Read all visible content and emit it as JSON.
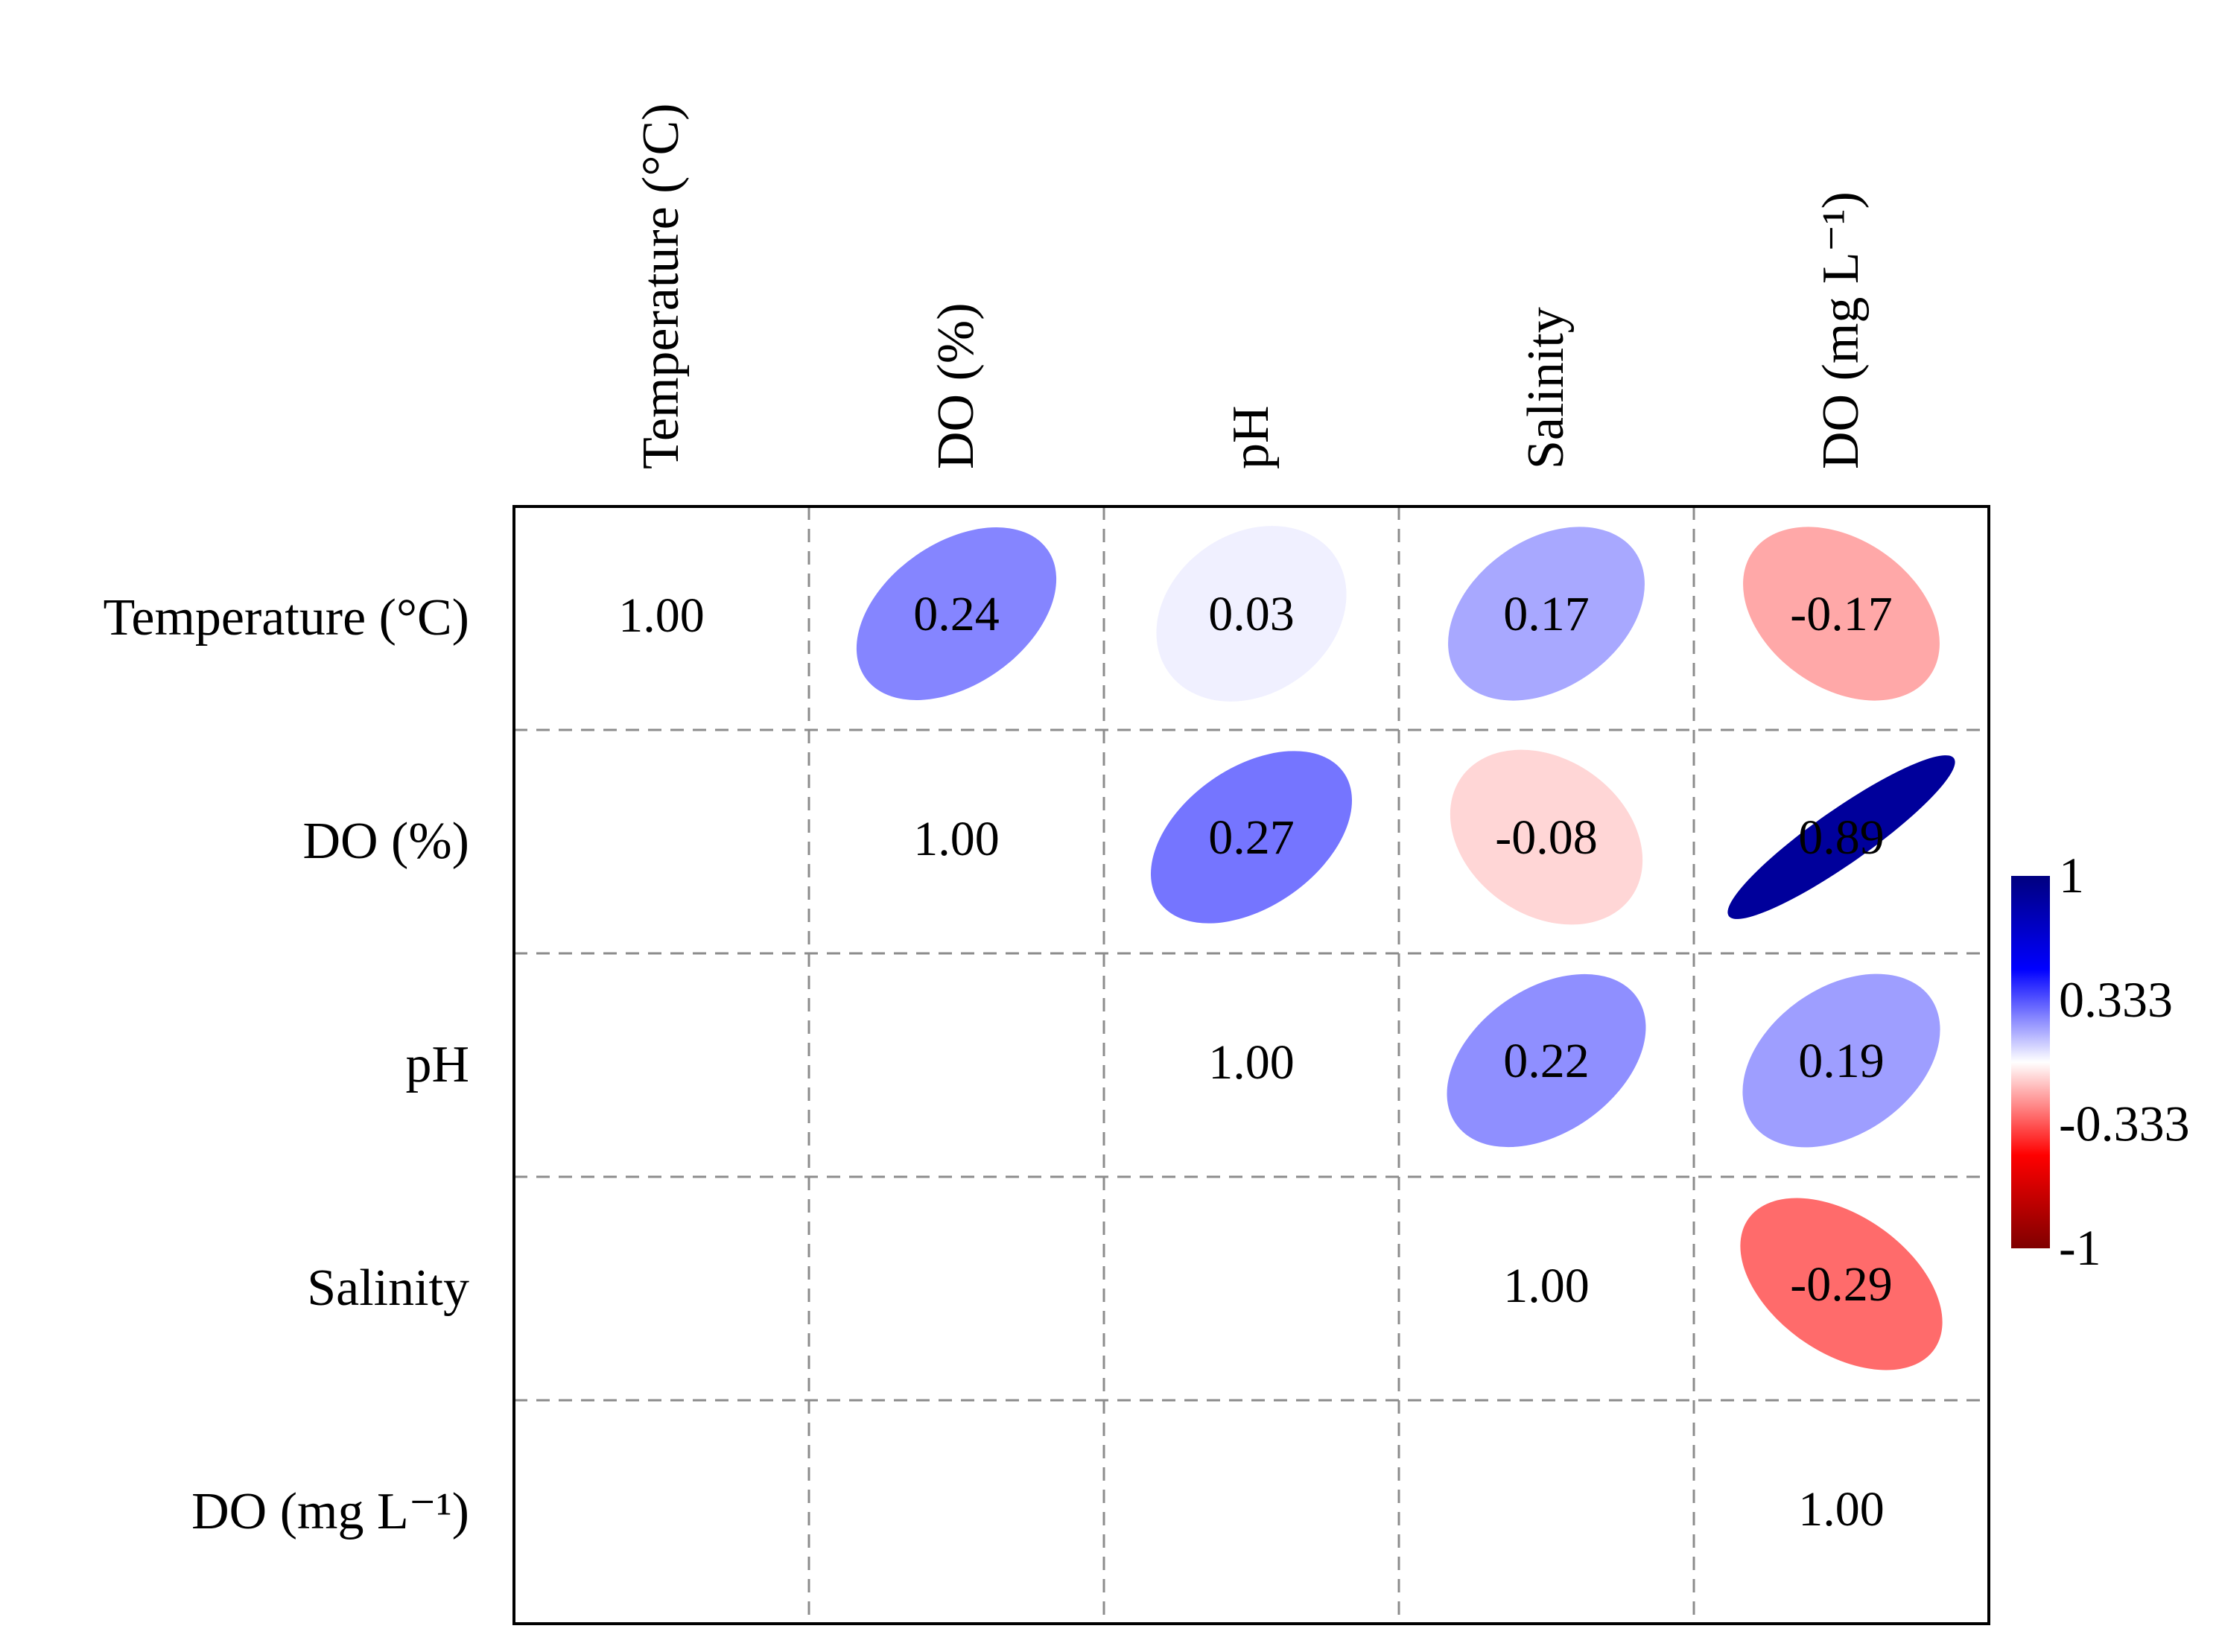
{
  "chart_data": {
    "type": "heatmap",
    "variables": [
      "Temperature (°C)",
      "DO (%)",
      "pH",
      "Salinity",
      "DO (mg L⁻¹)"
    ],
    "matrix": [
      [
        1.0,
        0.24,
        0.03,
        0.17,
        -0.17
      ],
      [
        null,
        1.0,
        0.27,
        -0.08,
        0.89
      ],
      [
        null,
        null,
        1.0,
        0.22,
        0.19
      ],
      [
        null,
        null,
        null,
        1.0,
        -0.29
      ],
      [
        null,
        null,
        null,
        null,
        1.0
      ]
    ],
    "cell_labels": [
      [
        "1.00",
        "0.24",
        "0.03",
        "0.17",
        "-0.17"
      ],
      [
        "",
        "1.00",
        "0.27",
        "-0.08",
        "0.89"
      ],
      [
        "",
        "",
        "1.00",
        "0.22",
        "0.19"
      ],
      [
        "",
        "",
        "",
        "1.00",
        "-0.29"
      ],
      [
        "",
        "",
        "",
        "",
        "1.00"
      ]
    ],
    "colorbar": {
      "range": [
        -1,
        1
      ],
      "ticks": [
        1,
        0.333,
        -0.333,
        -1
      ],
      "tick_labels": [
        "1",
        "0.333",
        "-0.333",
        "-1"
      ],
      "colors": [
        "#00007f",
        "#0000ff",
        "#ffffff",
        "#ff0000",
        "#7f0000"
      ]
    },
    "grid": "dashed",
    "title": "",
    "xlabel": "",
    "ylabel": ""
  }
}
